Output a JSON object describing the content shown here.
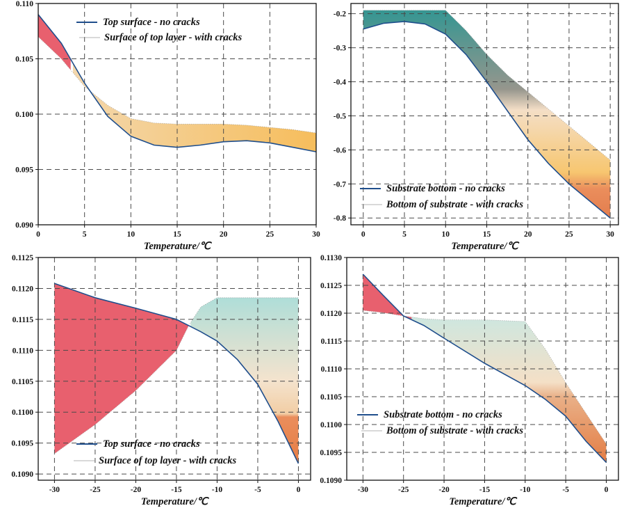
{
  "chart_data": [
    {
      "type": "area",
      "xlabel": "Temperature/℃",
      "ylabel": "",
      "xlim": [
        0,
        30
      ],
      "ylim": [
        0.09,
        0.11
      ],
      "xticks": [
        0,
        5,
        10,
        15,
        20,
        25,
        30
      ],
      "yticks": [
        0.09,
        0.095,
        0.1,
        0.105,
        0.11
      ],
      "ytick_decimals": 3,
      "grid": true,
      "legend_position": "top-left",
      "fill_colors": [
        "#e8606e",
        "#f5c36b"
      ],
      "series": [
        {
          "name": "Top surface - no cracks",
          "color": "#1f4e8c",
          "x": [
            0,
            2.5,
            5,
            7.5,
            10,
            12.5,
            15,
            17.5,
            20,
            22.5,
            25,
            27.5,
            30
          ],
          "y": [
            0.109,
            0.1064,
            0.1028,
            0.0998,
            0.098,
            0.0972,
            0.097,
            0.0972,
            0.0975,
            0.0976,
            0.0974,
            0.097,
            0.0966
          ]
        },
        {
          "name": "Surface of top layer - with cracks",
          "color": "#9a9a9a",
          "x": [
            0,
            2.5,
            5,
            7.5,
            10,
            12.5,
            15,
            17.5,
            20,
            22.5,
            25,
            27.5,
            30
          ],
          "y": [
            0.107,
            0.105,
            0.1025,
            0.1008,
            0.0996,
            0.0992,
            0.0991,
            0.0991,
            0.0991,
            0.099,
            0.0988,
            0.0986,
            0.0983
          ]
        }
      ]
    },
    {
      "type": "area",
      "xlabel": "Temperature/℃",
      "ylabel": "",
      "xlim": [
        -1.5,
        31
      ],
      "ylim": [
        -0.82,
        -0.17
      ],
      "xticks": [
        0,
        5,
        10,
        15,
        20,
        25,
        30
      ],
      "yticks": [
        -0.2,
        -0.3,
        -0.4,
        -0.5,
        -0.6,
        -0.7,
        -0.8
      ],
      "ytick_decimals": 1,
      "grid": true,
      "legend_position": "bottom-left",
      "fill_colors": [
        "#2a8a8a",
        "#f5c36b"
      ],
      "series": [
        {
          "name": "Substrate bottom - no cracks",
          "color": "#1f4e8c",
          "x": [
            0,
            2.5,
            5,
            7.5,
            10,
            12.5,
            15,
            17.5,
            20,
            22.5,
            25,
            27.5,
            30
          ],
          "y": [
            -0.245,
            -0.228,
            -0.223,
            -0.23,
            -0.26,
            -0.32,
            -0.4,
            -0.485,
            -0.57,
            -0.64,
            -0.7,
            -0.75,
            -0.8
          ]
        },
        {
          "name": "Bottom of substrate - with cracks",
          "color": "#9a9a9a",
          "x": [
            0,
            2.5,
            5,
            7.5,
            10,
            12.5,
            15,
            17.5,
            20,
            22.5,
            25,
            27.5,
            30
          ],
          "y": [
            -0.19,
            -0.19,
            -0.19,
            -0.19,
            -0.19,
            -0.25,
            -0.32,
            -0.38,
            -0.43,
            -0.48,
            -0.53,
            -0.58,
            -0.63
          ]
        }
      ]
    },
    {
      "type": "area",
      "xlabel": "Temperature/℃",
      "ylabel": "",
      "xlim": [
        -32,
        1.5
      ],
      "ylim": [
        0.1089,
        0.1125
      ],
      "xticks": [
        -30,
        -25,
        -20,
        -15,
        -10,
        -5,
        0
      ],
      "yticks": [
        0.109,
        0.1095,
        0.11,
        0.1105,
        0.111,
        0.1115,
        0.112,
        0.1125
      ],
      "ytick_decimals": 4,
      "grid": true,
      "legend_position": "bottom-center",
      "fill_colors": [
        "#e8606e",
        "#a8dcd6",
        "#e8814a"
      ],
      "series": [
        {
          "name": "Top surface - no cracks",
          "color": "#1f4e8c",
          "x": [
            -30,
            -25,
            -20,
            -15,
            -13.5,
            -12,
            -10,
            -7.5,
            -5,
            -2.5,
            0
          ],
          "y": [
            0.11208,
            0.11185,
            0.11168,
            0.1115,
            0.1114,
            0.1113,
            0.11115,
            0.11085,
            0.11045,
            0.10985,
            0.10917
          ]
        },
        {
          "name": "Surface of top layer - with cracks",
          "color": "#9a9a9a",
          "x": [
            -30,
            -25,
            -20,
            -15,
            -13.5,
            -12,
            -10,
            -7.5,
            -5,
            -2.5,
            0
          ],
          "y": [
            0.10933,
            0.1098,
            0.11035,
            0.111,
            0.1114,
            0.1117,
            0.11185,
            0.11185,
            0.11185,
            0.11185,
            0.11185
          ]
        }
      ]
    },
    {
      "type": "area",
      "xlabel": "Temperature/℃",
      "ylabel": "",
      "xlim": [
        -32,
        1.5
      ],
      "ylim": [
        0.109,
        0.113
      ],
      "xticks": [
        -30,
        -25,
        -20,
        -15,
        -10,
        -5,
        0
      ],
      "yticks": [
        0.109,
        0.1095,
        0.11,
        0.1105,
        0.111,
        0.1115,
        0.112,
        0.1125,
        0.113
      ],
      "ytick_decimals": 4,
      "grid": true,
      "legend_position": "bottom-left",
      "fill_colors": [
        "#e8606e",
        "#f5c36b",
        "#e8814a"
      ],
      "series": [
        {
          "name": "Substrate bottom - no cracks",
          "color": "#1f4e8c",
          "x": [
            -30,
            -27.5,
            -25,
            -22.5,
            -20,
            -15,
            -10,
            -7.5,
            -5,
            -2.5,
            0
          ],
          "y": [
            0.1127,
            0.11232,
            0.11195,
            0.11178,
            0.11155,
            0.1111,
            0.1107,
            0.11045,
            0.11015,
            0.1097,
            0.10932
          ]
        },
        {
          "name": "Bottom of substrate - with cracks",
          "color": "#9a9a9a",
          "x": [
            -30,
            -27.5,
            -25,
            -22.5,
            -20,
            -15,
            -10,
            -7.5,
            -5,
            -2.5,
            0
          ],
          "y": [
            0.11205,
            0.11201,
            0.11195,
            0.1119,
            0.11188,
            0.11188,
            0.11185,
            0.11135,
            0.11075,
            0.1102,
            0.10965
          ]
        }
      ]
    }
  ]
}
